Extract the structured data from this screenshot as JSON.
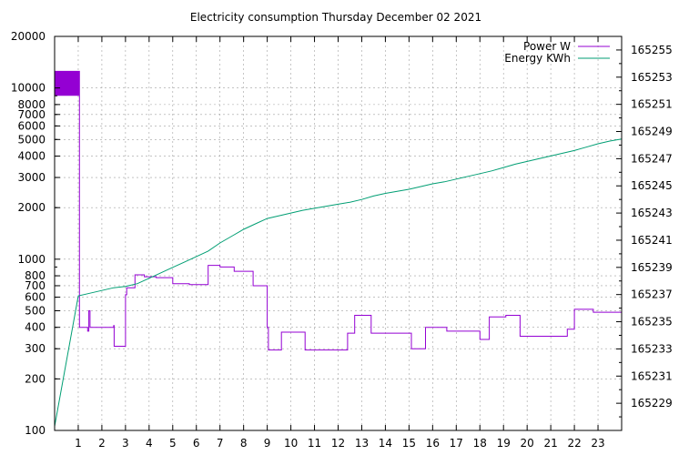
{
  "chart_data": {
    "type": "line",
    "title": "Electricity consumption Thursday December 02 2021",
    "legend_position": "top-right",
    "grid": true,
    "x": {
      "range": [
        0,
        24
      ],
      "ticks": [
        1,
        2,
        3,
        4,
        5,
        6,
        7,
        8,
        9,
        10,
        11,
        12,
        13,
        14,
        15,
        16,
        17,
        18,
        19,
        20,
        21,
        22,
        23
      ],
      "tick_labels": [
        "1",
        "2",
        "3",
        "4",
        "5",
        "6",
        "7",
        "8",
        "9",
        "10",
        "11",
        "12",
        "13",
        "14",
        "15",
        "16",
        "17",
        "18",
        "19",
        "20",
        "21",
        "22",
        "23"
      ]
    },
    "y_left": {
      "scale": "log",
      "range": [
        100,
        20000
      ],
      "ticks": [
        100,
        200,
        300,
        400,
        500,
        600,
        700,
        800,
        1000,
        2000,
        3000,
        4000,
        5000,
        6000,
        7000,
        8000,
        10000,
        20000
      ],
      "tick_labels": [
        "100",
        "200",
        "300",
        "400",
        "500",
        "600",
        "700",
        "800",
        "1000",
        "2000",
        "3000",
        "4000",
        "5000",
        "6000",
        "7000",
        "8000",
        "10000",
        "20000"
      ]
    },
    "y_right": {
      "scale": "linear",
      "range": [
        165227,
        165256
      ],
      "ticks": [
        165229,
        165231,
        165233,
        165235,
        165237,
        165239,
        165241,
        165243,
        165245,
        165247,
        165249,
        165251,
        165253,
        165255
      ],
      "tick_labels": [
        "165229",
        "165231",
        "165233",
        "165235",
        "165237",
        "165239",
        "165241",
        "165243",
        "165245",
        "165247",
        "165249",
        "165251",
        "165253",
        "165255"
      ]
    },
    "series": [
      {
        "name": "Power W",
        "axis": "left",
        "color": "#9400d3",
        "style": "steps",
        "band": {
          "x": [
            0,
            1.05
          ],
          "y": [
            9000,
            12500
          ]
        },
        "points": [
          [
            0,
            12500
          ],
          [
            1.05,
            12500
          ],
          [
            1.05,
            9000
          ],
          [
            1.05,
            400
          ],
          [
            1.4,
            400
          ],
          [
            1.4,
            380
          ],
          [
            1.45,
            380
          ],
          [
            1.45,
            500
          ],
          [
            1.5,
            500
          ],
          [
            1.5,
            400
          ],
          [
            2.5,
            400
          ],
          [
            2.5,
            410
          ],
          [
            2.52,
            410
          ],
          [
            2.52,
            310
          ],
          [
            3.0,
            310
          ],
          [
            3.0,
            620
          ],
          [
            3.05,
            620
          ],
          [
            3.05,
            680
          ],
          [
            3.4,
            680
          ],
          [
            3.4,
            810
          ],
          [
            3.8,
            810
          ],
          [
            3.8,
            790
          ],
          [
            4.3,
            790
          ],
          [
            4.3,
            780
          ],
          [
            5.0,
            780
          ],
          [
            5.0,
            720
          ],
          [
            5.7,
            720
          ],
          [
            5.7,
            710
          ],
          [
            6.5,
            710
          ],
          [
            6.5,
            920
          ],
          [
            7.0,
            920
          ],
          [
            7.0,
            900
          ],
          [
            7.6,
            900
          ],
          [
            7.6,
            850
          ],
          [
            8.4,
            850
          ],
          [
            8.4,
            700
          ],
          [
            9.0,
            700
          ],
          [
            9.0,
            400
          ],
          [
            9.05,
            400
          ],
          [
            9.05,
            295
          ],
          [
            9.6,
            295
          ],
          [
            9.6,
            375
          ],
          [
            10.6,
            375
          ],
          [
            10.6,
            295
          ],
          [
            12.4,
            295
          ],
          [
            12.4,
            370
          ],
          [
            12.7,
            370
          ],
          [
            12.7,
            470
          ],
          [
            13.4,
            470
          ],
          [
            13.4,
            370
          ],
          [
            15.1,
            370
          ],
          [
            15.1,
            300
          ],
          [
            15.7,
            300
          ],
          [
            15.7,
            400
          ],
          [
            16.6,
            400
          ],
          [
            16.6,
            380
          ],
          [
            18.0,
            380
          ],
          [
            18.0,
            340
          ],
          [
            18.4,
            340
          ],
          [
            18.4,
            460
          ],
          [
            19.1,
            460
          ],
          [
            19.1,
            470
          ],
          [
            19.7,
            470
          ],
          [
            19.7,
            355
          ],
          [
            21.7,
            355
          ],
          [
            21.7,
            390
          ],
          [
            22.0,
            390
          ],
          [
            22.0,
            510
          ],
          [
            22.8,
            510
          ],
          [
            22.8,
            490
          ],
          [
            24.0,
            490
          ],
          [
            24.0,
            400
          ]
        ]
      },
      {
        "name": "Energy KWh",
        "axis": "right",
        "color": "#009e73",
        "style": "line",
        "points": [
          [
            0,
            165227.3
          ],
          [
            1.0,
            165236.9
          ],
          [
            1.5,
            165237.1
          ],
          [
            2.0,
            165237.3
          ],
          [
            2.5,
            165237.5
          ],
          [
            3.0,
            165237.6
          ],
          [
            3.5,
            165237.8
          ],
          [
            4.0,
            165238.2
          ],
          [
            4.5,
            165238.6
          ],
          [
            5.0,
            165239.0
          ],
          [
            5.5,
            165239.4
          ],
          [
            6.0,
            165239.8
          ],
          [
            6.5,
            165240.2
          ],
          [
            7.0,
            165240.8
          ],
          [
            7.5,
            165241.3
          ],
          [
            8.0,
            165241.8
          ],
          [
            8.5,
            165242.2
          ],
          [
            9.0,
            165242.6
          ],
          [
            9.5,
            165242.8
          ],
          [
            10.0,
            165243.0
          ],
          [
            10.5,
            165243.2
          ],
          [
            11.0,
            165243.35
          ],
          [
            11.5,
            165243.5
          ],
          [
            12.0,
            165243.65
          ],
          [
            12.5,
            165243.8
          ],
          [
            13.0,
            165244.0
          ],
          [
            13.5,
            165244.25
          ],
          [
            14.0,
            165244.45
          ],
          [
            14.5,
            165244.6
          ],
          [
            15.0,
            165244.75
          ],
          [
            15.5,
            165244.95
          ],
          [
            16.0,
            165245.15
          ],
          [
            16.5,
            165245.3
          ],
          [
            17.0,
            165245.5
          ],
          [
            17.5,
            165245.7
          ],
          [
            18.0,
            165245.9
          ],
          [
            18.5,
            165246.1
          ],
          [
            19.0,
            165246.35
          ],
          [
            19.5,
            165246.6
          ],
          [
            20.0,
            165246.8
          ],
          [
            20.5,
            165247.0
          ],
          [
            21.0,
            165247.2
          ],
          [
            21.5,
            165247.4
          ],
          [
            22.0,
            165247.6
          ],
          [
            22.5,
            165247.85
          ],
          [
            23.0,
            165248.1
          ],
          [
            23.5,
            165248.3
          ],
          [
            24.0,
            165248.45
          ]
        ]
      }
    ]
  }
}
